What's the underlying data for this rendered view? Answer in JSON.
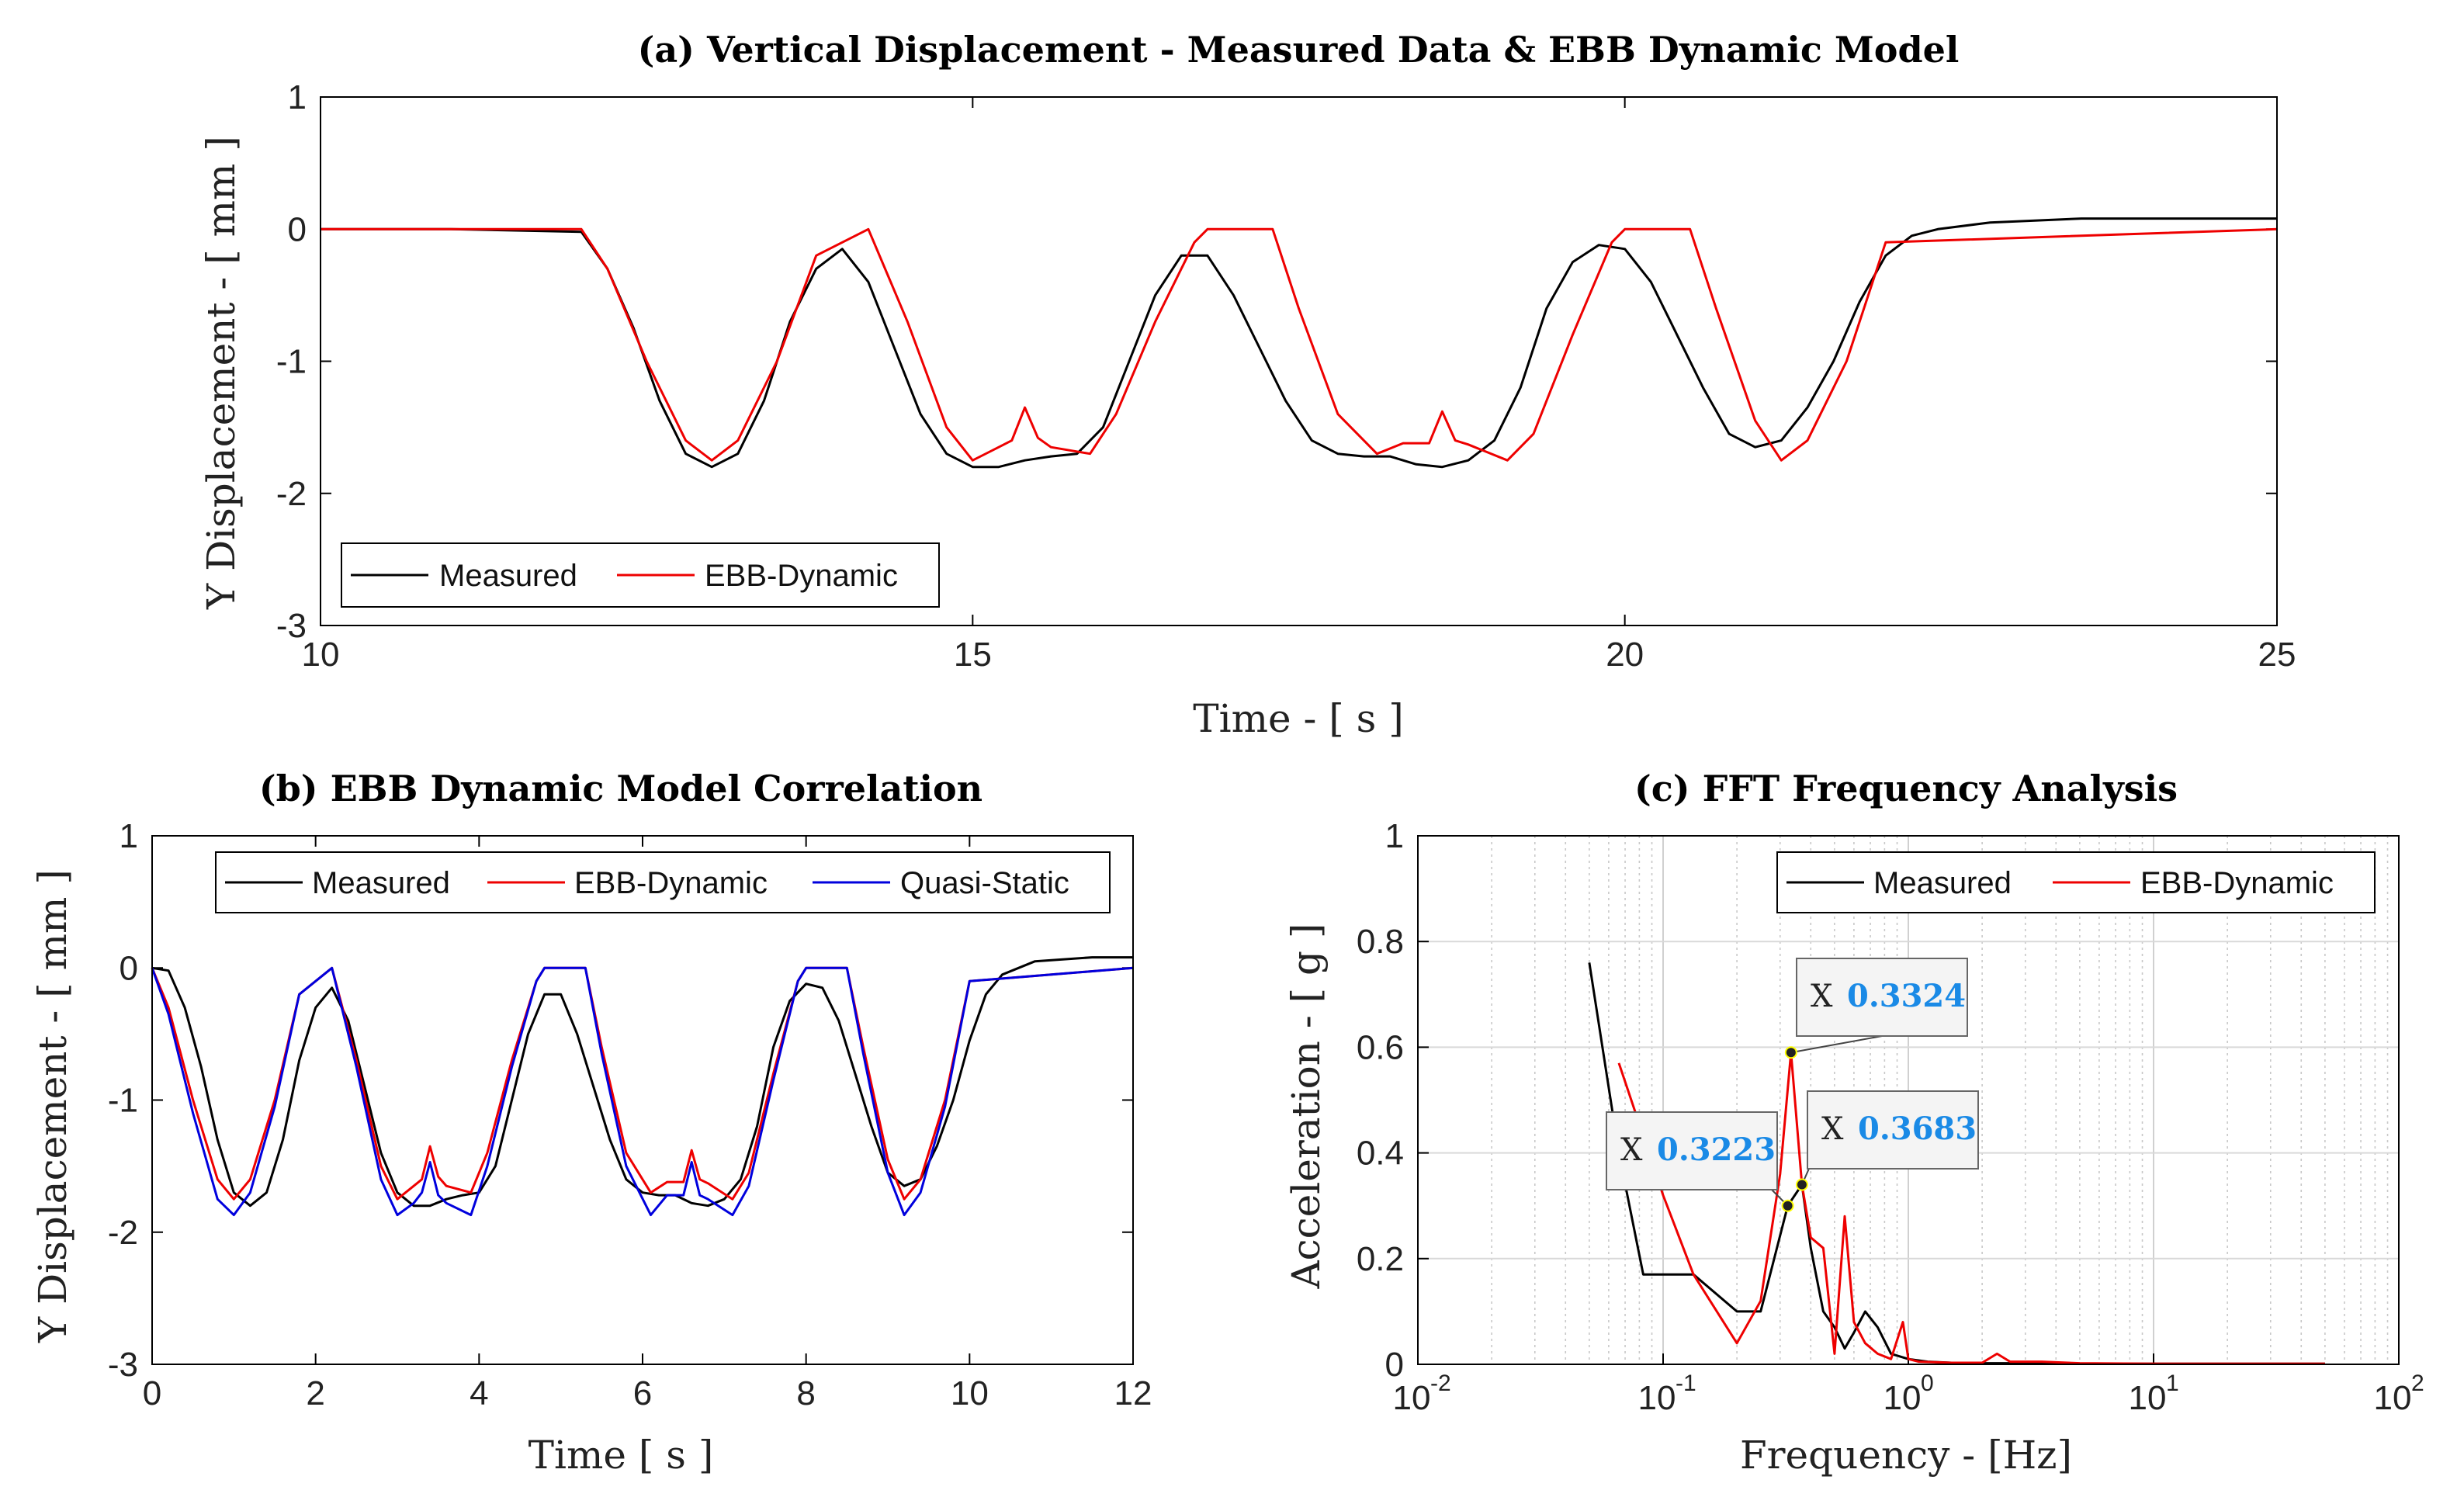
{
  "colors": {
    "measured": "#000000",
    "ebb": "#ee0000",
    "quasi": "#0000dd",
    "datatip_value": "#1a8ae6",
    "grid": "#d9d9d9"
  },
  "chart_data": [
    {
      "id": "a",
      "type": "line",
      "title": "(a) Vertical Displacement - Measured Data & EBB Dynamic Model",
      "xlabel": "Time - [ s ]",
      "ylabel": "Y Displacement - [ mm ]",
      "xlim": [
        10,
        25
      ],
      "ylim": [
        -3,
        1
      ],
      "xticks": [
        10,
        15,
        20,
        25
      ],
      "yticks": [
        1,
        0,
        -1,
        -2,
        -3
      ],
      "legend": {
        "position": "bottom-left",
        "entries": [
          "Measured",
          "EBB-Dynamic"
        ]
      },
      "series": [
        {
          "name": "Measured",
          "color": "measured",
          "x": [
            10.0,
            11.0,
            12.0,
            12.2,
            12.4,
            12.6,
            12.8,
            13.0,
            13.2,
            13.4,
            13.6,
            13.8,
            14.0,
            14.2,
            14.4,
            14.6,
            14.8,
            15.0,
            15.2,
            15.4,
            15.6,
            15.8,
            16.0,
            16.2,
            16.4,
            16.6,
            16.8,
            17.0,
            17.2,
            17.4,
            17.6,
            17.8,
            18.0,
            18.2,
            18.4,
            18.6,
            18.8,
            19.0,
            19.2,
            19.4,
            19.6,
            19.8,
            20.0,
            20.2,
            20.4,
            20.6,
            20.8,
            21.0,
            21.2,
            21.4,
            21.6,
            21.8,
            22.0,
            22.2,
            22.4,
            22.8,
            23.5,
            24.5,
            25.0
          ],
          "y": [
            0.0,
            0.0,
            -0.02,
            -0.3,
            -0.75,
            -1.3,
            -1.7,
            -1.8,
            -1.7,
            -1.3,
            -0.7,
            -0.3,
            -0.15,
            -0.4,
            -0.9,
            -1.4,
            -1.7,
            -1.8,
            -1.8,
            -1.75,
            -1.72,
            -1.7,
            -1.5,
            -1.0,
            -0.5,
            -0.2,
            -0.2,
            -0.5,
            -0.9,
            -1.3,
            -1.6,
            -1.7,
            -1.72,
            -1.72,
            -1.78,
            -1.8,
            -1.75,
            -1.6,
            -1.2,
            -0.6,
            -0.25,
            -0.12,
            -0.15,
            -0.4,
            -0.8,
            -1.2,
            -1.55,
            -1.65,
            -1.6,
            -1.35,
            -1.0,
            -0.55,
            -0.2,
            -0.05,
            0.0,
            0.05,
            0.08,
            0.08,
            0.08
          ]
        },
        {
          "name": "EBB-Dynamic",
          "color": "ebb",
          "x": [
            10.0,
            12.0,
            12.2,
            12.5,
            12.8,
            13.0,
            13.2,
            13.5,
            13.8,
            14.2,
            14.5,
            14.8,
            15.0,
            15.2,
            15.3,
            15.4,
            15.5,
            15.6,
            15.9,
            16.1,
            16.4,
            16.7,
            16.8,
            17.3,
            17.5,
            17.8,
            18.1,
            18.3,
            18.5,
            18.6,
            18.7,
            18.8,
            19.1,
            19.3,
            19.6,
            19.9,
            20.0,
            20.5,
            20.7,
            21.0,
            21.2,
            21.4,
            21.7,
            22.0,
            25.0
          ],
          "y": [
            0.0,
            0.0,
            -0.3,
            -1.0,
            -1.6,
            -1.75,
            -1.6,
            -1.0,
            -0.2,
            0.0,
            -0.7,
            -1.5,
            -1.75,
            -1.65,
            -1.6,
            -1.35,
            -1.58,
            -1.65,
            -1.7,
            -1.4,
            -0.7,
            -0.1,
            0.0,
            0.0,
            -0.6,
            -1.4,
            -1.7,
            -1.62,
            -1.62,
            -1.38,
            -1.6,
            -1.63,
            -1.75,
            -1.55,
            -0.8,
            -0.1,
            0.0,
            0.0,
            -0.6,
            -1.45,
            -1.75,
            -1.6,
            -1.0,
            -0.1,
            0.0
          ]
        }
      ]
    },
    {
      "id": "b",
      "type": "line",
      "title": "(b) EBB Dynamic Model Correlation",
      "xlabel": "Time [ s ]",
      "ylabel": "Y Displacement - [ mm ]",
      "xlim": [
        0,
        12
      ],
      "ylim": [
        -3,
        1
      ],
      "xticks": [
        0,
        2,
        4,
        6,
        8,
        10,
        12
      ],
      "yticks": [
        1,
        0,
        -1,
        -2,
        -3
      ],
      "legend": {
        "position": "top",
        "entries": [
          "Measured",
          "EBB-Dynamic",
          "Quasi-Static"
        ]
      },
      "series": [
        {
          "name": "Measured",
          "color": "measured",
          "x": [
            0,
            0.2,
            0.4,
            0.6,
            0.8,
            1.0,
            1.2,
            1.4,
            1.6,
            1.8,
            2.0,
            2.2,
            2.4,
            2.6,
            2.8,
            3.0,
            3.2,
            3.4,
            3.6,
            3.8,
            4.0,
            4.2,
            4.4,
            4.6,
            4.8,
            5.0,
            5.2,
            5.4,
            5.6,
            5.8,
            6.0,
            6.2,
            6.4,
            6.6,
            6.8,
            7.0,
            7.2,
            7.4,
            7.6,
            7.8,
            8.0,
            8.2,
            8.4,
            8.6,
            8.8,
            9.0,
            9.2,
            9.4,
            9.6,
            9.8,
            10.0,
            10.2,
            10.4,
            10.8,
            11.5,
            12.0
          ],
          "y": [
            0.0,
            -0.02,
            -0.3,
            -0.75,
            -1.3,
            -1.7,
            -1.8,
            -1.7,
            -1.3,
            -0.7,
            -0.3,
            -0.15,
            -0.4,
            -0.9,
            -1.4,
            -1.7,
            -1.8,
            -1.8,
            -1.75,
            -1.72,
            -1.7,
            -1.5,
            -1.0,
            -0.5,
            -0.2,
            -0.2,
            -0.5,
            -0.9,
            -1.3,
            -1.6,
            -1.7,
            -1.72,
            -1.72,
            -1.78,
            -1.8,
            -1.75,
            -1.6,
            -1.2,
            -0.6,
            -0.25,
            -0.12,
            -0.15,
            -0.4,
            -0.8,
            -1.2,
            -1.55,
            -1.65,
            -1.6,
            -1.35,
            -1.0,
            -0.55,
            -0.2,
            -0.05,
            0.05,
            0.08,
            0.08
          ]
        },
        {
          "name": "EBB-Dynamic",
          "color": "ebb",
          "x": [
            0,
            0.2,
            0.5,
            0.8,
            1.0,
            1.2,
            1.5,
            1.8,
            2.2,
            2.5,
            2.8,
            3.0,
            3.2,
            3.3,
            3.4,
            3.5,
            3.6,
            3.9,
            4.1,
            4.4,
            4.7,
            4.8,
            5.3,
            5.5,
            5.8,
            6.1,
            6.3,
            6.5,
            6.6,
            6.7,
            6.8,
            7.1,
            7.3,
            7.6,
            7.9,
            8.0,
            8.5,
            8.7,
            9.0,
            9.2,
            9.4,
            9.7,
            10.0,
            12.0
          ],
          "y": [
            0.0,
            -0.3,
            -1.0,
            -1.6,
            -1.75,
            -1.6,
            -1.0,
            -0.2,
            0.0,
            -0.7,
            -1.5,
            -1.75,
            -1.65,
            -1.6,
            -1.35,
            -1.58,
            -1.65,
            -1.7,
            -1.4,
            -0.7,
            -0.1,
            0.0,
            0.0,
            -0.6,
            -1.4,
            -1.7,
            -1.62,
            -1.62,
            -1.38,
            -1.6,
            -1.63,
            -1.75,
            -1.55,
            -0.8,
            -0.1,
            0.0,
            0.0,
            -0.6,
            -1.45,
            -1.75,
            -1.6,
            -1.0,
            -0.1,
            0.0
          ]
        },
        {
          "name": "Quasi-Static",
          "color": "quasi",
          "x": [
            0,
            0.2,
            0.5,
            0.8,
            1.0,
            1.2,
            1.5,
            1.8,
            2.2,
            2.5,
            2.8,
            3.0,
            3.2,
            3.3,
            3.4,
            3.5,
            3.6,
            3.9,
            4.1,
            4.4,
            4.7,
            4.8,
            5.3,
            5.5,
            5.8,
            6.1,
            6.3,
            6.5,
            6.6,
            6.7,
            6.8,
            7.1,
            7.3,
            7.6,
            7.9,
            8.0,
            8.5,
            8.7,
            9.0,
            9.2,
            9.4,
            9.7,
            10.0,
            12.0
          ],
          "y": [
            0.0,
            -0.35,
            -1.1,
            -1.75,
            -1.87,
            -1.7,
            -1.05,
            -0.2,
            0.0,
            -0.75,
            -1.6,
            -1.87,
            -1.78,
            -1.7,
            -1.47,
            -1.72,
            -1.78,
            -1.87,
            -1.5,
            -0.75,
            -0.1,
            0.0,
            0.0,
            -0.65,
            -1.5,
            -1.87,
            -1.72,
            -1.72,
            -1.47,
            -1.72,
            -1.75,
            -1.87,
            -1.65,
            -0.85,
            -0.1,
            0.0,
            0.0,
            -0.65,
            -1.55,
            -1.87,
            -1.7,
            -1.05,
            -0.1,
            0.0
          ]
        }
      ]
    },
    {
      "id": "c",
      "type": "line",
      "title": "(c) FFT Frequency Analysis",
      "xlabel": "Frequency - [Hz]",
      "ylabel": "Acceleration - [ g ]",
      "xscale": "log",
      "xlim": [
        0.01,
        100
      ],
      "ylim": [
        0,
        1
      ],
      "grid": true,
      "yticks": [
        1,
        0.8,
        0.6,
        0.4,
        0.2,
        0
      ],
      "xticks": [
        {
          "base": "10",
          "exp": "-2",
          "value": 0.01
        },
        {
          "base": "10",
          "exp": "-1",
          "value": 0.1
        },
        {
          "base": "10",
          "exp": "0",
          "value": 1
        },
        {
          "base": "10",
          "exp": "1",
          "value": 10
        },
        {
          "base": "10",
          "exp": "2",
          "value": 100
        }
      ],
      "legend": {
        "position": "top-right",
        "entries": [
          "Measured",
          "EBB-Dynamic"
        ]
      },
      "datatips": [
        {
          "label": "X",
          "value": "0.3324",
          "x": 0.3324,
          "y": 0.59
        },
        {
          "label": "X",
          "value": "0.3223",
          "x": 0.3223,
          "y": 0.3
        },
        {
          "label": "X",
          "value": "0.3683",
          "x": 0.3683,
          "y": 0.34
        }
      ],
      "series": [
        {
          "name": "Measured",
          "color": "measured",
          "x": [
            0.05,
            0.066,
            0.083,
            0.1,
            0.133,
            0.2,
            0.25,
            0.3223,
            0.3683,
            0.4,
            0.45,
            0.5,
            0.55,
            0.6,
            0.667,
            0.75,
            0.85,
            1.0,
            1.2,
            1.5,
            2.0,
            3.0,
            5.0,
            10.0,
            20.0,
            50.0
          ],
          "y": [
            0.76,
            0.4,
            0.17,
            0.17,
            0.17,
            0.1,
            0.1,
            0.3,
            0.34,
            0.22,
            0.1,
            0.07,
            0.03,
            0.06,
            0.1,
            0.07,
            0.02,
            0.01,
            0.005,
            0.003,
            0.002,
            0.002,
            0.001,
            0.001,
            0.001,
            0.001
          ]
        },
        {
          "name": "EBB-Dynamic",
          "color": "ebb",
          "x": [
            0.066,
            0.1,
            0.133,
            0.2,
            0.25,
            0.3,
            0.3324,
            0.3683,
            0.4,
            0.45,
            0.5,
            0.55,
            0.6,
            0.667,
            0.75,
            0.85,
            0.95,
            1.0,
            1.1,
            1.5,
            2.0,
            2.3,
            2.6,
            3.5,
            5.0,
            10.0,
            20.0,
            50.0
          ],
          "y": [
            0.57,
            0.32,
            0.17,
            0.04,
            0.12,
            0.36,
            0.59,
            0.34,
            0.24,
            0.22,
            0.02,
            0.28,
            0.08,
            0.04,
            0.02,
            0.01,
            0.08,
            0.01,
            0.005,
            0.003,
            0.003,
            0.02,
            0.005,
            0.005,
            0.002,
            0.001,
            0.001,
            0.001
          ]
        }
      ]
    }
  ]
}
